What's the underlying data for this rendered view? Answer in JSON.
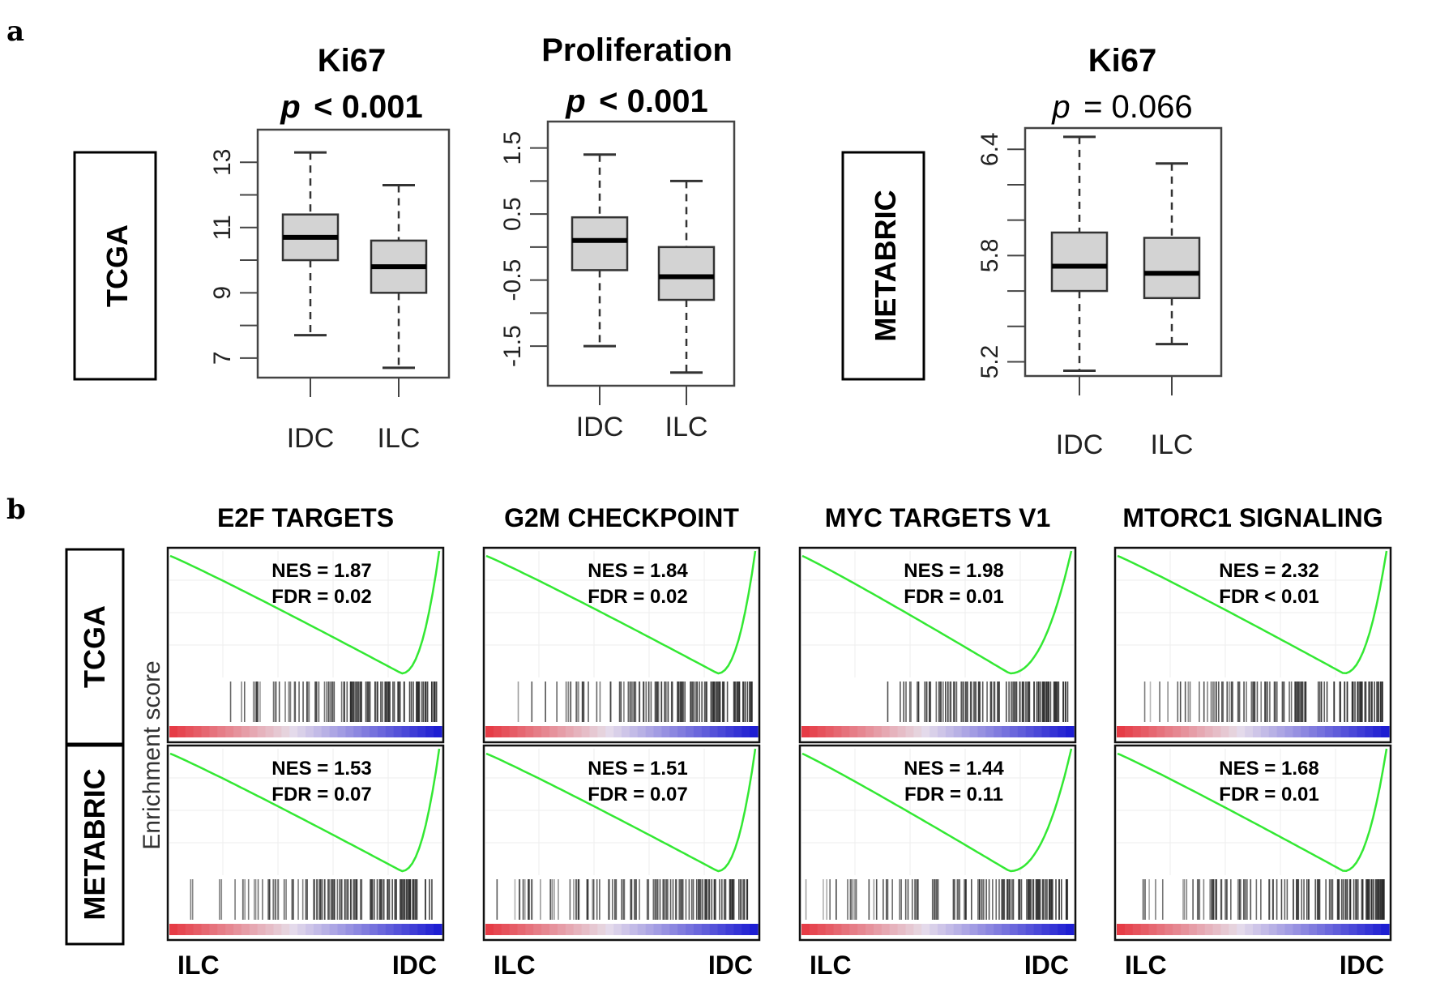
{
  "panel_letters": {
    "a": "a",
    "b": "b"
  },
  "chart_data": [
    {
      "type": "box",
      "cohort": "TCGA",
      "title": "Ki67",
      "p_symbol": "p",
      "p_text": "< 0.001",
      "categories": [
        "IDC",
        "ILC"
      ],
      "ylim": [
        6.4,
        14.0
      ],
      "yticks": [
        7,
        9,
        11,
        13
      ],
      "minor_ticks": [
        8,
        10,
        12
      ],
      "boxes": [
        {
          "name": "IDC",
          "whisker_low": 7.7,
          "q1": 10.0,
          "median": 10.7,
          "q3": 11.4,
          "whisker_high": 13.3
        },
        {
          "name": "ILC",
          "whisker_low": 6.7,
          "q1": 9.0,
          "median": 9.8,
          "q3": 10.6,
          "whisker_high": 12.3
        }
      ]
    },
    {
      "type": "box",
      "cohort": "TCGA",
      "title": "Proliferation",
      "p_symbol": "p",
      "p_text": "< 0.001",
      "categories": [
        "IDC",
        "ILC"
      ],
      "ylim": [
        -2.1,
        1.9
      ],
      "yticks": [
        -1.5,
        -0.5,
        0.5,
        1.5
      ],
      "ytick_labels": [
        "-1.5",
        "-0.5",
        "0.5",
        "1.5"
      ],
      "minor_ticks": [
        -1.0,
        0.0,
        1.0
      ],
      "boxes": [
        {
          "name": "IDC",
          "whisker_low": -1.5,
          "q1": -0.35,
          "median": 0.1,
          "q3": 0.45,
          "whisker_high": 1.4
        },
        {
          "name": "ILC",
          "whisker_low": -1.9,
          "q1": -0.8,
          "median": -0.45,
          "q3": 0.0,
          "whisker_high": 1.0
        }
      ]
    },
    {
      "type": "box",
      "cohort": "METABRIC",
      "title": "Ki67",
      "p_symbol": "p",
      "p_text": "= 0.066",
      "categories": [
        "IDC",
        "ILC"
      ],
      "ylim": [
        5.12,
        6.52
      ],
      "yticks": [
        5.2,
        5.8,
        6.4
      ],
      "minor_ticks": [
        5.4,
        5.6,
        6.0,
        6.2
      ],
      "boxes": [
        {
          "name": "IDC",
          "whisker_low": 5.15,
          "q1": 5.6,
          "median": 5.74,
          "q3": 5.93,
          "whisker_high": 6.47
        },
        {
          "name": "ILC",
          "whisker_low": 5.3,
          "q1": 5.56,
          "median": 5.7,
          "q3": 5.9,
          "whisker_high": 6.32
        }
      ]
    }
  ],
  "gsea": {
    "ylabel": "Enrichment score",
    "row_labels": [
      "TCGA",
      "METABRIC"
    ],
    "x_left_label": "ILC",
    "x_right_label": "IDC",
    "line_color": "#33e833",
    "gene_sets": [
      {
        "title": "E2F TARGETS",
        "stats": [
          {
            "nes": "NES = 1.87",
            "fdr": "FDR = 0.02"
          },
          {
            "nes": "NES = 1.53",
            "fdr": "FDR = 0.07"
          }
        ]
      },
      {
        "title": "G2M CHECKPOINT",
        "stats": [
          {
            "nes": "NES = 1.84",
            "fdr": "FDR = 0.02"
          },
          {
            "nes": "NES = 1.51",
            "fdr": "FDR = 0.07"
          }
        ]
      },
      {
        "title": "MYC TARGETS V1",
        "stats": [
          {
            "nes": "NES = 1.98",
            "fdr": "FDR = 0.01"
          },
          {
            "nes": "NES = 1.44",
            "fdr": "FDR = 0.11"
          }
        ]
      },
      {
        "title": "MTORC1 SIGNALING",
        "stats": [
          {
            "nes": "NES = 2.32",
            "fdr": "FDR < 0.01"
          },
          {
            "nes": "NES = 1.68",
            "fdr": "FDR = 0.01"
          }
        ]
      }
    ]
  }
}
